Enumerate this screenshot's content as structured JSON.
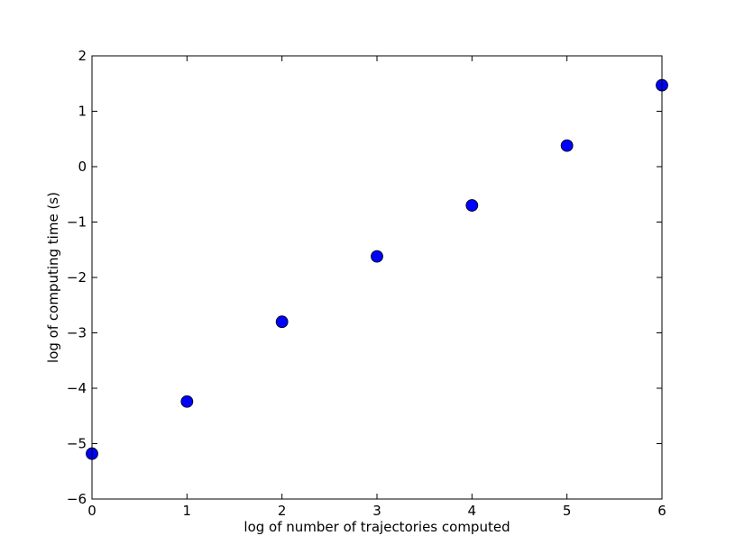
{
  "chart_data": {
    "type": "scatter",
    "title": "",
    "xlabel": "log of number of trajectories computed",
    "ylabel": "log of computing time (s)",
    "xlim": [
      0,
      6
    ],
    "ylim": [
      -6,
      2
    ],
    "x_ticks": [
      "0",
      "1",
      "2",
      "3",
      "4",
      "5",
      "6"
    ],
    "y_ticks": [
      "2",
      "1",
      "0",
      "−1",
      "−2",
      "−3",
      "−4",
      "−5",
      "−6"
    ],
    "grid": false,
    "legend": "none",
    "marker_color": "#0000ff",
    "marker_edge_color": "#000000",
    "points": [
      {
        "x": 0,
        "y": -5.18
      },
      {
        "x": 1,
        "y": -4.24
      },
      {
        "x": 2,
        "y": -2.8
      },
      {
        "x": 3,
        "y": -1.62
      },
      {
        "x": 4,
        "y": -0.7
      },
      {
        "x": 5,
        "y": 0.38
      },
      {
        "x": 6,
        "y": 1.47
      }
    ]
  }
}
